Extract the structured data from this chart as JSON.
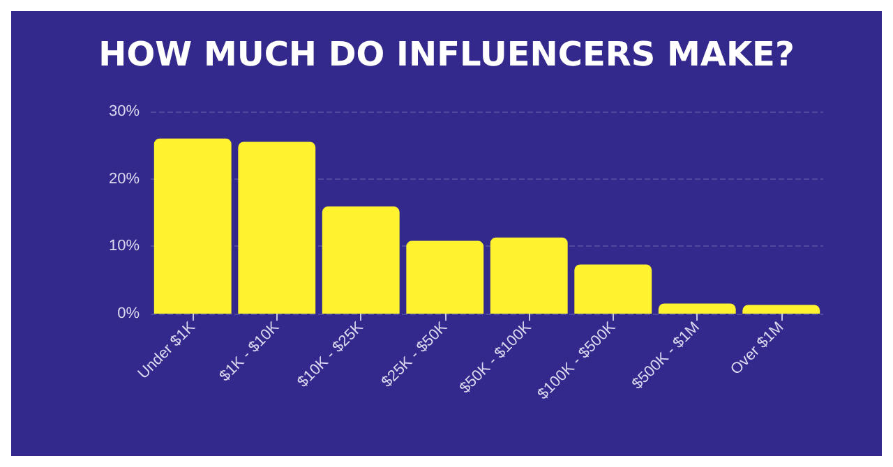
{
  "chart_data": {
    "type": "bar",
    "title": "HOW MUCH DO INFLUENCERS MAKE?",
    "categories": [
      "Under $1K",
      "$1K - $10K",
      "$10K - $25K",
      "$25K - $50K",
      "$50K - $100K",
      "$100K - $500K",
      "$500K - $1M",
      "Over $1M"
    ],
    "values": [
      26,
      25.5,
      15.9,
      10.8,
      11.3,
      7.3,
      1.5,
      1.3
    ],
    "color": "#fff22f",
    "ylim": [
      0,
      30
    ],
    "yticks": [
      {
        "value": 0,
        "label": "0%"
      },
      {
        "value": 10,
        "label": "10%"
      },
      {
        "value": 20,
        "label": "20%"
      },
      {
        "value": 30,
        "label": "30%"
      }
    ],
    "grid": "y"
  }
}
